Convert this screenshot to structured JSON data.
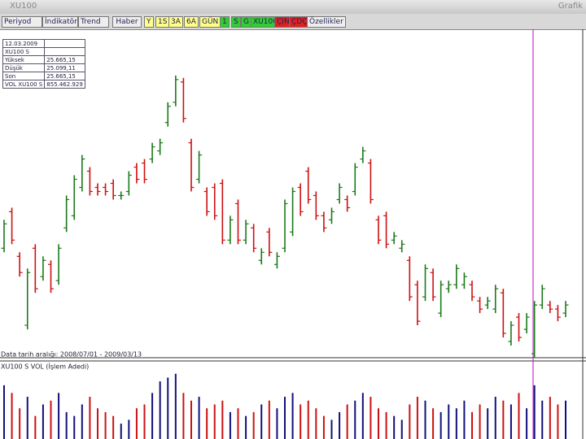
{
  "window": {
    "title": "XU100",
    "right_title": "Grafik"
  },
  "toolbar": {
    "dropdowns": [
      "Periyod",
      "İndikatör",
      "Trend"
    ],
    "news": "Haber",
    "periods": [
      "Y",
      "1S",
      "3A",
      "6A",
      "GÜN",
      "1",
      "S",
      "G",
      "XU100",
      "ÇIN",
      "ÇDÇ"
    ],
    "settings": "Özellikler"
  },
  "info_table": {
    "rows": [
      [
        "12.03.2009"
      ],
      [
        "XU100 S"
      ],
      [
        "Yüksek",
        "25.665,15"
      ],
      [
        "Düşük",
        "25.099,11"
      ],
      [
        "Son",
        "25.665,15"
      ],
      [
        "VOL XU100 S",
        "855.462.929"
      ]
    ]
  },
  "chart_data": [
    {
      "type": "ohlc",
      "footer": "Data tarih aralığı: 2008/07/01 - 2009/03/13",
      "up_color": "#1a7a1a",
      "down_color": "#cc1111",
      "ylim": [
        0,
        405
      ],
      "open": [
        135,
        180,
        125,
        40,
        135,
        100,
        115,
        95,
        160,
        175,
        210,
        230,
        210,
        210,
        215,
        200,
        205,
        235,
        240,
        245,
        255,
        290,
        315,
        340,
        265,
        220,
        205,
        210,
        215,
        145,
        190,
        145,
        160,
        120,
        155,
        115,
        135,
        155,
        210,
        230,
        200,
        175,
        170,
        195,
        195,
        205,
        245,
        240,
        170,
        175,
        145,
        135,
        120,
        90,
        75,
        105,
        55,
        85,
        90,
        90,
        90,
        70,
        65,
        60,
        80,
        20,
        50,
        35,
        5,
        65,
        65,
        60,
        55
      ],
      "high": [
        170,
        185,
        130,
        110,
        140,
        125,
        120,
        140,
        200,
        225,
        250,
        235,
        215,
        215,
        220,
        205,
        230,
        240,
        245,
        265,
        270,
        315,
        348,
        345,
        270,
        255,
        210,
        215,
        220,
        175,
        195,
        170,
        165,
        135,
        160,
        130,
        195,
        210,
        215,
        235,
        205,
        180,
        185,
        215,
        200,
        240,
        260,
        245,
        175,
        180,
        155,
        145,
        125,
        95,
        115,
        110,
        95,
        95,
        115,
        105,
        95,
        75,
        75,
        90,
        85,
        45,
        55,
        55,
        70,
        90,
        70,
        65,
        70
      ],
      "low": [
        130,
        140,
        100,
        35,
        80,
        95,
        80,
        90,
        155,
        170,
        205,
        200,
        200,
        200,
        195,
        195,
        200,
        215,
        215,
        240,
        250,
        285,
        310,
        290,
        205,
        215,
        175,
        170,
        140,
        140,
        140,
        140,
        130,
        115,
        125,
        110,
        130,
        150,
        175,
        190,
        170,
        155,
        165,
        190,
        180,
        200,
        240,
        190,
        140,
        135,
        140,
        130,
        70,
        40,
        70,
        70,
        50,
        80,
        85,
        85,
        70,
        55,
        60,
        55,
        25,
        15,
        20,
        30,
        0,
        60,
        55,
        45,
        50
      ],
      "close": [
        165,
        145,
        105,
        105,
        85,
        120,
        85,
        135,
        195,
        220,
        245,
        205,
        205,
        205,
        200,
        200,
        225,
        220,
        220,
        260,
        265,
        310,
        343,
        295,
        210,
        250,
        180,
        175,
        145,
        170,
        145,
        165,
        135,
        130,
        130,
        125,
        190,
        205,
        180,
        195,
        175,
        160,
        180,
        210,
        185,
        235,
        255,
        195,
        145,
        140,
        150,
        140,
        75,
        45,
        110,
        75,
        90,
        90,
        110,
        100,
        75,
        60,
        70,
        85,
        30,
        40,
        25,
        50,
        65,
        85,
        60,
        50,
        65
      ]
    },
    {
      "type": "volume",
      "title": "XU100 S VOL (İşlem Adedi)",
      "up_color": "#10107a",
      "down_color": "#cc1111",
      "ylim": [
        0,
        90
      ],
      "values": [
        70,
        60,
        40,
        55,
        30,
        45,
        50,
        60,
        35,
        30,
        45,
        55,
        40,
        35,
        30,
        20,
        25,
        40,
        45,
        60,
        75,
        80,
        85,
        60,
        50,
        55,
        40,
        45,
        50,
        35,
        40,
        30,
        35,
        45,
        50,
        40,
        55,
        60,
        45,
        50,
        40,
        30,
        25,
        35,
        45,
        50,
        60,
        55,
        40,
        35,
        30,
        25,
        45,
        55,
        50,
        40,
        35,
        45,
        40,
        50,
        35,
        45,
        40,
        55,
        50,
        45,
        60,
        40,
        70,
        50,
        55,
        45,
        50
      ]
    }
  ]
}
